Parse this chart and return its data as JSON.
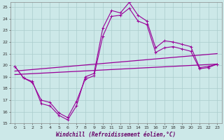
{
  "title": "",
  "xlabel": "Windchill (Refroidissement éolien,°C)",
  "ylabel": "",
  "bg_color": "#cce8e8",
  "plot_bg_color": "#cce8e8",
  "line_color": "#990099",
  "grid_color": "#aacccc",
  "spine_color": "#888888",
  "xlim": [
    -0.5,
    23.5
  ],
  "ylim": [
    15,
    25.4
  ],
  "xticks": [
    0,
    1,
    2,
    3,
    4,
    5,
    6,
    7,
    8,
    9,
    10,
    11,
    12,
    13,
    14,
    15,
    16,
    17,
    18,
    19,
    20,
    21,
    22,
    23
  ],
  "yticks": [
    15,
    16,
    17,
    18,
    19,
    20,
    21,
    22,
    23,
    24,
    25
  ],
  "line1_x": [
    0,
    1,
    2,
    3,
    4,
    5,
    6,
    7,
    8,
    9,
    10,
    11,
    12,
    13,
    14,
    15,
    16,
    17,
    18,
    19,
    20,
    21,
    22,
    23
  ],
  "line1_y": [
    19.9,
    18.9,
    18.6,
    16.7,
    16.5,
    15.7,
    15.3,
    16.5,
    19.0,
    19.3,
    23.2,
    24.7,
    24.5,
    25.4,
    24.3,
    23.8,
    21.5,
    22.1,
    22.0,
    21.8,
    21.6,
    19.8,
    19.9,
    20.1
  ],
  "line2_x": [
    0,
    23
  ],
  "line2_y": [
    19.5,
    21.0
  ],
  "line3_x": [
    0,
    23
  ],
  "line3_y": [
    19.2,
    20.1
  ],
  "line4_x": [
    0,
    1,
    2,
    3,
    4,
    5,
    6,
    7,
    8,
    9,
    10,
    11,
    12,
    13,
    14,
    15,
    16,
    17,
    18,
    19,
    20,
    21,
    22,
    23
  ],
  "line4_y": [
    19.9,
    18.9,
    18.5,
    17.0,
    16.8,
    15.9,
    15.5,
    16.9,
    18.8,
    19.1,
    22.5,
    24.2,
    24.3,
    24.9,
    23.8,
    23.5,
    21.1,
    21.5,
    21.6,
    21.4,
    21.2,
    19.7,
    19.8,
    20.1
  ]
}
